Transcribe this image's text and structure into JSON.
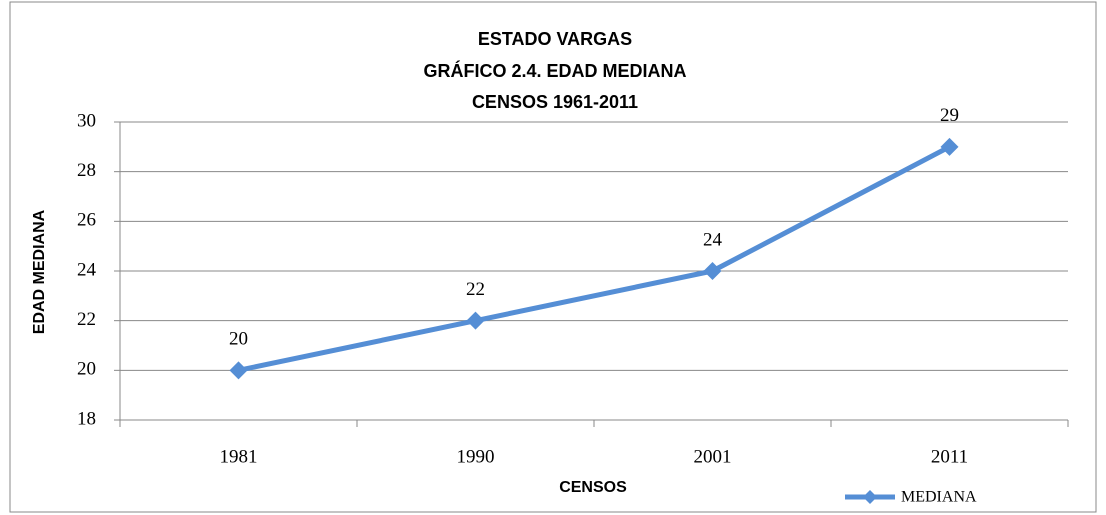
{
  "chart_data": {
    "type": "line",
    "title": [
      "ESTADO VARGAS",
      "GRÁFICO 2.4. EDAD MEDIANA",
      "CENSOS 1961-2011"
    ],
    "x_label": "CENSOS",
    "y_label": "EDAD MEDIANA",
    "categories": [
      "1981",
      "1990",
      "2001",
      "2011"
    ],
    "series": [
      {
        "name": "MEDIANA",
        "color": "#558ed5",
        "values": [
          20,
          22,
          24,
          29
        ]
      }
    ],
    "ylim": [
      18,
      30
    ],
    "yticks": [
      18,
      20,
      22,
      24,
      26,
      28,
      30
    ],
    "grid": true,
    "legend": "bottom-right"
  }
}
